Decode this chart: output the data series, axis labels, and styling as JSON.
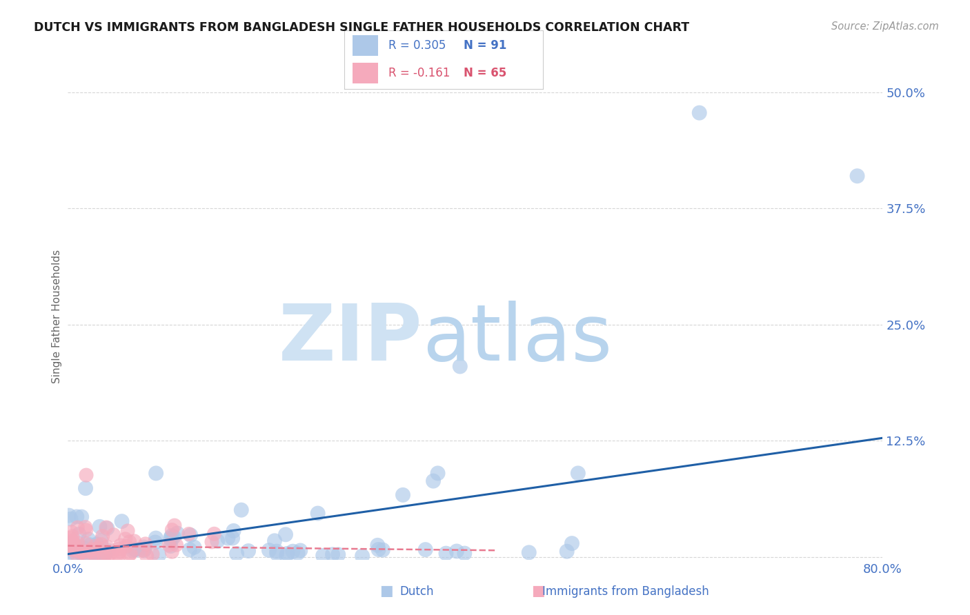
{
  "title": "DUTCH VS IMMIGRANTS FROM BANGLADESH SINGLE FATHER HOUSEHOLDS CORRELATION CHART",
  "source": "Source: ZipAtlas.com",
  "ylabel": "Single Father Households",
  "xlim": [
    0.0,
    0.8
  ],
  "ylim": [
    -0.003,
    0.52
  ],
  "xticks": [
    0.0,
    0.8
  ],
  "xtick_labels": [
    "0.0%",
    "80.0%"
  ],
  "yticks": [
    0.0,
    0.125,
    0.25,
    0.375,
    0.5
  ],
  "ytick_labels": [
    "",
    "12.5%",
    "25.0%",
    "37.5%",
    "50.0%"
  ],
  "dutch_scatter_color": "#adc8e8",
  "bangladesh_scatter_color": "#f5aabc",
  "dutch_line_color": "#1f5fa6",
  "bangladesh_line_color": "#e87a90",
  "dutch_R": 0.305,
  "dutch_N": 91,
  "bangladesh_R": -0.161,
  "bangladesh_N": 65,
  "legend_blue_color": "#4472c4",
  "legend_pink_color": "#d9536f",
  "watermark_zip_color": "#cfe2f3",
  "watermark_atlas_color": "#b8d4ed",
  "background_color": "#ffffff",
  "grid_color": "#cccccc",
  "title_color": "#1a1a1a",
  "axis_tick_color": "#4472c4",
  "source_color": "#999999",
  "ylabel_color": "#666666",
  "dutch_line_start_y": 0.003,
  "dutch_line_end_y": 0.128,
  "bangladesh_line_start_y": 0.012,
  "bangladesh_line_end_y": 0.007,
  "bangladesh_line_end_x": 0.42
}
